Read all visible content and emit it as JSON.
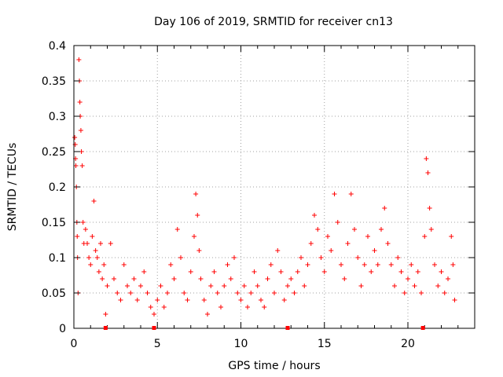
{
  "chart_data": {
    "type": "scatter",
    "title": "Day 106 of 2019, SRMTID for receiver cn13",
    "xlabel": "GPS time / hours",
    "ylabel": "SRMTID / TECUs",
    "xlim": [
      0,
      24
    ],
    "ylim": [
      0,
      0.4
    ],
    "x_ticks": [
      0,
      5,
      10,
      15,
      20
    ],
    "y_ticks": [
      0,
      0.05,
      0.1,
      0.15,
      0.2,
      0.25,
      0.3,
      0.35,
      0.4
    ],
    "x_tick_labels": [
      "0",
      "5",
      "10",
      "15",
      "20"
    ],
    "y_tick_labels": [
      "0",
      "0.05",
      "0.1",
      "0.15",
      "0.2",
      "0.25",
      "0.3",
      "0.35",
      "0.4"
    ],
    "grid": true,
    "marker": "+",
    "color": "#ff0000",
    "series": [
      {
        "name": "SRMTID",
        "points": [
          [
            0.05,
            0.27
          ],
          [
            0.08,
            0.26
          ],
          [
            0.1,
            0.24
          ],
          [
            0.12,
            0.23
          ],
          [
            0.15,
            0.2
          ],
          [
            0.18,
            0.15
          ],
          [
            0.2,
            0.13
          ],
          [
            0.22,
            0.1
          ],
          [
            0.25,
            0.05
          ],
          [
            0.3,
            0.38
          ],
          [
            0.33,
            0.35
          ],
          [
            0.36,
            0.32
          ],
          [
            0.38,
            0.3
          ],
          [
            0.42,
            0.28
          ],
          [
            0.45,
            0.25
          ],
          [
            0.5,
            0.23
          ],
          [
            0.55,
            0.15
          ],
          [
            0.6,
            0.12
          ],
          [
            0.7,
            0.14
          ],
          [
            0.8,
            0.12
          ],
          [
            0.9,
            0.1
          ],
          [
            1.0,
            0.09
          ],
          [
            1.1,
            0.13
          ],
          [
            1.2,
            0.18
          ],
          [
            1.3,
            0.11
          ],
          [
            1.4,
            0.1
          ],
          [
            1.5,
            0.08
          ],
          [
            1.6,
            0.12
          ],
          [
            1.7,
            0.07
          ],
          [
            1.8,
            0.09
          ],
          [
            1.9,
            0.02
          ],
          [
            2.0,
            0.06
          ],
          [
            2.2,
            0.12
          ],
          [
            2.4,
            0.07
          ],
          [
            2.6,
            0.05
          ],
          [
            2.8,
            0.04
          ],
          [
            3.0,
            0.09
          ],
          [
            3.2,
            0.06
          ],
          [
            3.4,
            0.05
          ],
          [
            3.6,
            0.07
          ],
          [
            3.8,
            0.04
          ],
          [
            4.0,
            0.06
          ],
          [
            4.2,
            0.08
          ],
          [
            4.4,
            0.05
          ],
          [
            4.6,
            0.03
          ],
          [
            4.8,
            0.02
          ],
          [
            5.0,
            0.04
          ],
          [
            5.2,
            0.06
          ],
          [
            5.4,
            0.03
          ],
          [
            5.6,
            0.05
          ],
          [
            5.8,
            0.09
          ],
          [
            6.0,
            0.07
          ],
          [
            6.2,
            0.14
          ],
          [
            6.4,
            0.1
          ],
          [
            6.6,
            0.05
          ],
          [
            6.8,
            0.04
          ],
          [
            7.0,
            0.08
          ],
          [
            7.2,
            0.13
          ],
          [
            7.3,
            0.19
          ],
          [
            7.4,
            0.16
          ],
          [
            7.5,
            0.11
          ],
          [
            7.6,
            0.07
          ],
          [
            7.8,
            0.04
          ],
          [
            8.0,
            0.02
          ],
          [
            8.2,
            0.06
          ],
          [
            8.4,
            0.08
          ],
          [
            8.6,
            0.05
          ],
          [
            8.8,
            0.03
          ],
          [
            9.0,
            0.06
          ],
          [
            9.2,
            0.09
          ],
          [
            9.4,
            0.07
          ],
          [
            9.6,
            0.1
          ],
          [
            9.8,
            0.05
          ],
          [
            10.0,
            0.04
          ],
          [
            10.2,
            0.06
          ],
          [
            10.4,
            0.03
          ],
          [
            10.6,
            0.05
          ],
          [
            10.8,
            0.08
          ],
          [
            11.0,
            0.06
          ],
          [
            11.2,
            0.04
          ],
          [
            11.4,
            0.03
          ],
          [
            11.6,
            0.07
          ],
          [
            11.8,
            0.09
          ],
          [
            12.0,
            0.05
          ],
          [
            12.2,
            0.11
          ],
          [
            12.4,
            0.08
          ],
          [
            12.6,
            0.04
          ],
          [
            12.8,
            0.06
          ],
          [
            13.0,
            0.07
          ],
          [
            13.2,
            0.05
          ],
          [
            13.4,
            0.08
          ],
          [
            13.6,
            0.1
          ],
          [
            13.8,
            0.06
          ],
          [
            14.0,
            0.09
          ],
          [
            14.2,
            0.12
          ],
          [
            14.4,
            0.16
          ],
          [
            14.6,
            0.14
          ],
          [
            14.8,
            0.1
          ],
          [
            15.0,
            0.08
          ],
          [
            15.2,
            0.13
          ],
          [
            15.4,
            0.11
          ],
          [
            15.6,
            0.19
          ],
          [
            15.8,
            0.15
          ],
          [
            16.0,
            0.09
          ],
          [
            16.2,
            0.07
          ],
          [
            16.4,
            0.12
          ],
          [
            16.6,
            0.19
          ],
          [
            16.8,
            0.14
          ],
          [
            17.0,
            0.1
          ],
          [
            17.2,
            0.06
          ],
          [
            17.4,
            0.09
          ],
          [
            17.6,
            0.13
          ],
          [
            17.8,
            0.08
          ],
          [
            18.0,
            0.11
          ],
          [
            18.2,
            0.09
          ],
          [
            18.4,
            0.14
          ],
          [
            18.6,
            0.17
          ],
          [
            18.8,
            0.12
          ],
          [
            19.0,
            0.09
          ],
          [
            19.2,
            0.06
          ],
          [
            19.4,
            0.1
          ],
          [
            19.6,
            0.08
          ],
          [
            19.8,
            0.05
          ],
          [
            20.0,
            0.07
          ],
          [
            20.2,
            0.09
          ],
          [
            20.4,
            0.06
          ],
          [
            20.6,
            0.08
          ],
          [
            20.8,
            0.05
          ],
          [
            21.0,
            0.13
          ],
          [
            21.1,
            0.24
          ],
          [
            21.2,
            0.22
          ],
          [
            21.3,
            0.17
          ],
          [
            21.4,
            0.14
          ],
          [
            21.6,
            0.09
          ],
          [
            21.8,
            0.06
          ],
          [
            22.0,
            0.08
          ],
          [
            22.2,
            0.05
          ],
          [
            22.4,
            0.07
          ],
          [
            22.6,
            0.13
          ],
          [
            22.7,
            0.09
          ],
          [
            22.8,
            0.04
          ]
        ]
      }
    ],
    "axis_markers_x": [
      1.9,
      4.8,
      12.8,
      20.9
    ]
  }
}
